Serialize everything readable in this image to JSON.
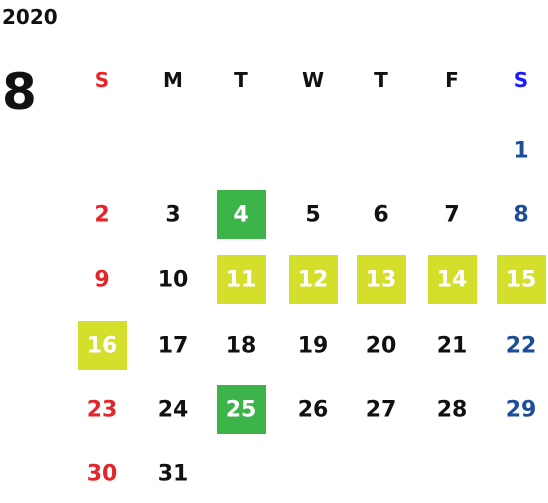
{
  "year": "2020",
  "month": "8",
  "weekdays": [
    "S",
    "M",
    "T",
    "W",
    "T",
    "F",
    "S"
  ],
  "weekday_colors": [
    "#e3262a",
    "#111111",
    "#111111",
    "#111111",
    "#111111",
    "#111111",
    "#1a1aff"
  ],
  "day_colors": [
    "#e3262a",
    "#111111",
    "#111111",
    "#111111",
    "#111111",
    "#111111",
    "#1d4e9a"
  ],
  "weeks": [
    [
      null,
      null,
      null,
      null,
      null,
      null,
      {
        "day": 1
      }
    ],
    [
      {
        "day": 2
      },
      {
        "day": 3
      },
      {
        "day": 4,
        "highlight": "#3cb44a"
      },
      {
        "day": 5
      },
      {
        "day": 6
      },
      {
        "day": 7
      },
      {
        "day": 8
      }
    ],
    [
      {
        "day": 9
      },
      {
        "day": 10
      },
      {
        "day": 11,
        "highlight": "#d4df2c"
      },
      {
        "day": 12,
        "highlight": "#d4df2c"
      },
      {
        "day": 13,
        "highlight": "#d4df2c"
      },
      {
        "day": 14,
        "highlight": "#d4df2c"
      },
      {
        "day": 15,
        "highlight": "#d4df2c"
      }
    ],
    [
      {
        "day": 16,
        "highlight": "#d4df2c"
      },
      {
        "day": 17
      },
      {
        "day": 18
      },
      {
        "day": 19
      },
      {
        "day": 20
      },
      {
        "day": 21
      },
      {
        "day": 22
      }
    ],
    [
      {
        "day": 23
      },
      {
        "day": 24
      },
      {
        "day": 25,
        "highlight": "#3cb44a"
      },
      {
        "day": 26
      },
      {
        "day": 27
      },
      {
        "day": 28
      },
      {
        "day": 29
      }
    ],
    [
      {
        "day": 30
      },
      {
        "day": 31
      },
      null,
      null,
      null,
      null,
      null
    ]
  ]
}
